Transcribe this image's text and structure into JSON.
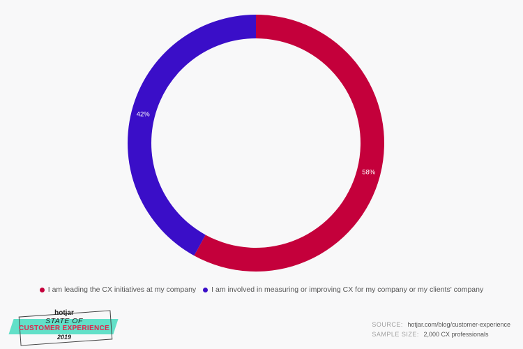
{
  "chart_data": {
    "type": "pie",
    "donut": true,
    "categories": [
      "I am leading the CX initiatives at my company",
      "I am involved in measuring or improving CX for my company or my clients' company"
    ],
    "values": [
      58,
      42
    ],
    "labels": [
      "58%",
      "42%"
    ],
    "colors": [
      "#c4003b",
      "#3a0ec8"
    ],
    "legend_position": "bottom"
  },
  "branding": {
    "logo": "hotjar",
    "line1": "STATE OF",
    "line2": "CUSTOMER EXPERIENCE",
    "year": "2019"
  },
  "meta": {
    "source_label": "SOURCE:",
    "source_value": "hotjar.com/blog/customer-experience",
    "sample_label": "SAMPLE SIZE:",
    "sample_value": "2,000 CX professionals"
  }
}
